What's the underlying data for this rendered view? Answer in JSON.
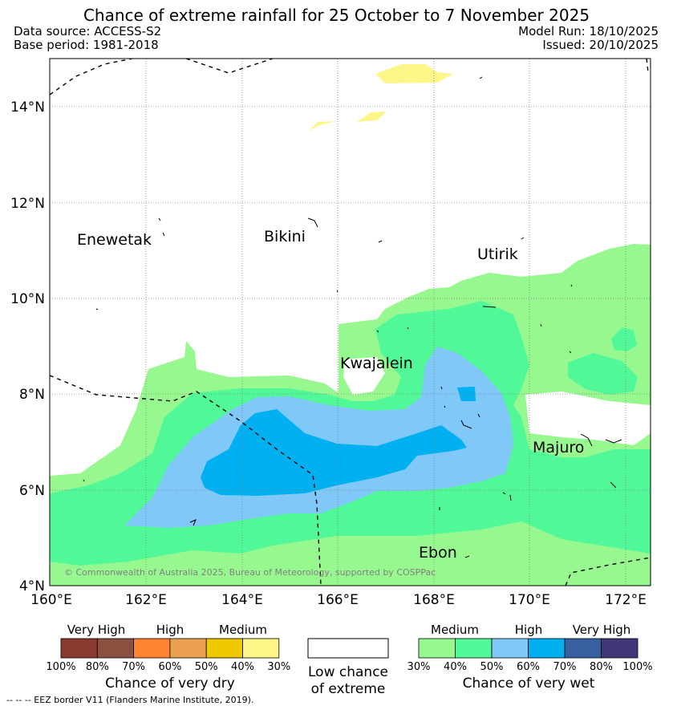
{
  "title": "Chance of extreme rainfall for 25 October to 7 November 2025",
  "data_source": "Data source: ACCESS-S2",
  "base_period": "Base period: 1981-2018",
  "model_run": "Model Run: 18/10/2025",
  "issued": "Issued: 20/10/2025",
  "map": {
    "lat_labels": [
      "14°N",
      "12°N",
      "10°N",
      "8°N",
      "6°N",
      "4°N"
    ],
    "lon_labels": [
      "160°E",
      "162°E",
      "164°E",
      "166°E",
      "168°E",
      "170°E",
      "172°E"
    ],
    "places": [
      {
        "name": "Enewetak"
      },
      {
        "name": "Bikini"
      },
      {
        "name": "Utirik"
      },
      {
        "name": "Kwajalein"
      },
      {
        "name": "Majuro"
      },
      {
        "name": "Ebon"
      }
    ],
    "copyright": "© Commonwealth of Australia 2025, Bureau of Meteorology, supported by COSPPac",
    "contour_levels_wet": [
      30,
      40,
      50,
      60
    ],
    "contour_levels_dry": [
      30,
      40
    ]
  },
  "legend": {
    "dry": {
      "categories": [
        "Very High",
        "High",
        "Medium"
      ],
      "ticks": [
        "100%",
        "80%",
        "70%",
        "60%",
        "50%",
        "40%",
        "30%"
      ],
      "colors": [
        "#8b3a2f",
        "#8b5140",
        "#ff8330",
        "#eba050",
        "#f0c800",
        "#fff68a"
      ],
      "caption": "Chance of very dry"
    },
    "neutral": {
      "caption_line1": "Low chance",
      "caption_line2": "of extreme",
      "color": "#ffffff"
    },
    "wet": {
      "categories": [
        "Medium",
        "High",
        "Very High"
      ],
      "ticks": [
        "30%",
        "40%",
        "50%",
        "60%",
        "70%",
        "80%",
        "100%"
      ],
      "colors": [
        "#98f890",
        "#50f898",
        "#80c8f8",
        "#00b0f0",
        "#3860a0",
        "#403878"
      ],
      "caption": "Chance of very wet"
    }
  },
  "eez_note": "--  --  -- EEZ border V11 (Flanders Marine Institute, 2019)."
}
